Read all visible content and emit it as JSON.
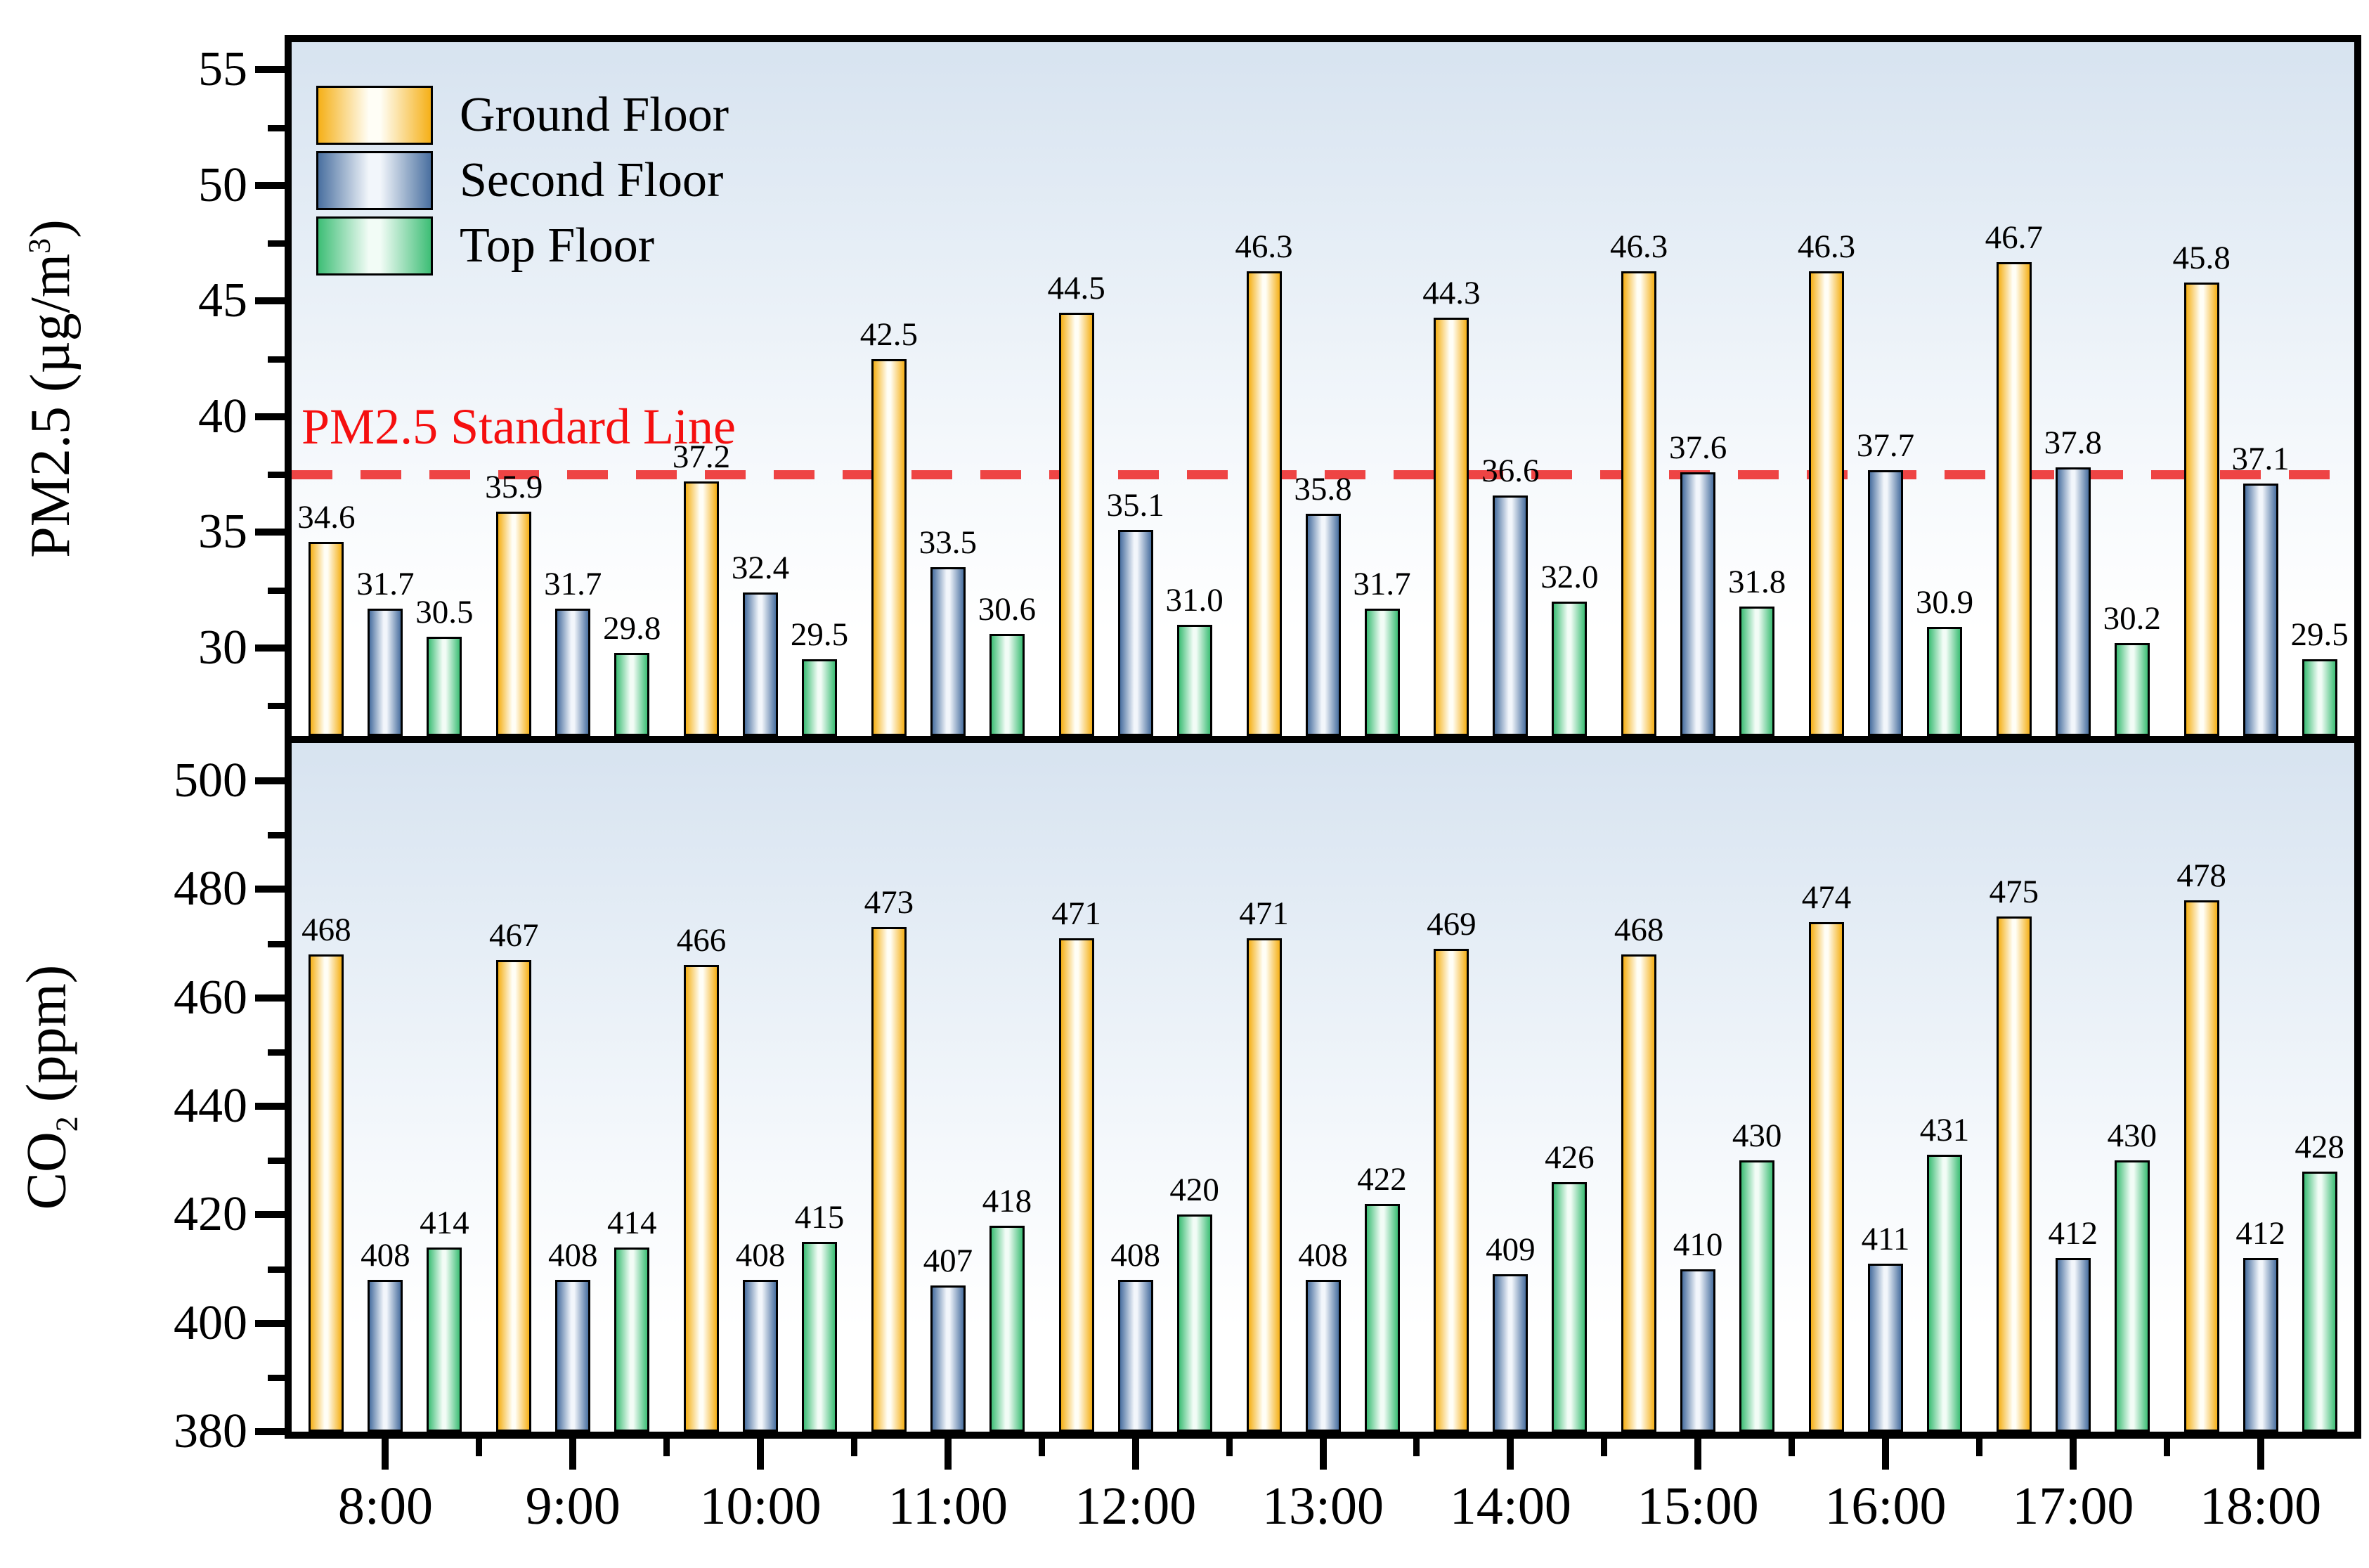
{
  "figure": {
    "legend": {
      "items": [
        {
          "label": "Ground Floor",
          "edge_color": "#F5B018",
          "center_color": "#FFFEF6"
        },
        {
          "label": "Second Floor",
          "edge_color": "#4A70A0",
          "center_color": "#F2F6FB"
        },
        {
          "label": "Top Floor",
          "edge_color": "#3EBE76",
          "center_color": "#F2FCF6"
        }
      ]
    },
    "colors": {
      "panel_background_top": "#D7E3F0",
      "reference_line": "#EE4444",
      "reference_text": "#F50F0F",
      "bar_border": "#000000",
      "text": "#000000"
    }
  },
  "chart_data": [
    {
      "type": "bar",
      "panel": "top",
      "ylabel": "PM2.5 (µg/m3)",
      "ylabel_parts": {
        "prefix": "PM2.5 (µg/m",
        "sup": "3",
        "suffix": ")"
      },
      "xlabel": "",
      "categories": [
        "8:00",
        "9:00",
        "10:00",
        "11:00",
        "12:00",
        "13:00",
        "14:00",
        "15:00",
        "16:00",
        "17:00",
        "18:00"
      ],
      "series": [
        {
          "name": "Ground Floor",
          "values": [
            34.6,
            35.9,
            37.2,
            42.5,
            44.5,
            46.3,
            44.3,
            46.3,
            46.3,
            46.7,
            45.8
          ]
        },
        {
          "name": "Second Floor",
          "values": [
            31.7,
            31.7,
            32.4,
            33.5,
            35.1,
            35.8,
            36.6,
            37.6,
            37.7,
            37.8,
            37.1
          ]
        },
        {
          "name": "Top Floor",
          "values": [
            30.5,
            29.8,
            29.5,
            30.6,
            31.0,
            31.7,
            32.0,
            31.8,
            30.9,
            30.2,
            29.5
          ]
        }
      ],
      "value_label_decimals": 1,
      "yticks_major": [
        30,
        35,
        40,
        45,
        50,
        55
      ],
      "yticks_minor": [
        27.5,
        32.5,
        37.5,
        42.5,
        47.5,
        52.5
      ],
      "ylim": [
        26.2,
        56.2
      ],
      "grid": false,
      "legend_position": "inside top-left",
      "reference_line": {
        "value": 37.5,
        "label": "PM2.5 Standard Line"
      }
    },
    {
      "type": "bar",
      "panel": "bottom",
      "ylabel": "CO2 (ppm)",
      "ylabel_parts": {
        "prefix": "CO",
        "sub": "2",
        "suffix": " (ppm)"
      },
      "xlabel": "",
      "categories": [
        "8:00",
        "9:00",
        "10:00",
        "11:00",
        "12:00",
        "13:00",
        "14:00",
        "15:00",
        "16:00",
        "17:00",
        "18:00"
      ],
      "series": [
        {
          "name": "Ground Floor",
          "values": [
            468,
            467,
            466,
            473,
            471,
            471,
            469,
            468,
            474,
            475,
            478
          ]
        },
        {
          "name": "Second Floor",
          "values": [
            408,
            408,
            408,
            407,
            408,
            408,
            409,
            410,
            411,
            412,
            412
          ]
        },
        {
          "name": "Top Floor",
          "values": [
            414,
            414,
            415,
            418,
            420,
            422,
            426,
            430,
            431,
            430,
            428
          ]
        }
      ],
      "value_label_decimals": 0,
      "yticks_major": [
        380,
        400,
        420,
        440,
        460,
        480,
        500
      ],
      "yticks_minor": [
        390,
        410,
        430,
        450,
        470,
        490
      ],
      "ylim": [
        380,
        507
      ],
      "grid": false,
      "reference_line": null
    }
  ]
}
